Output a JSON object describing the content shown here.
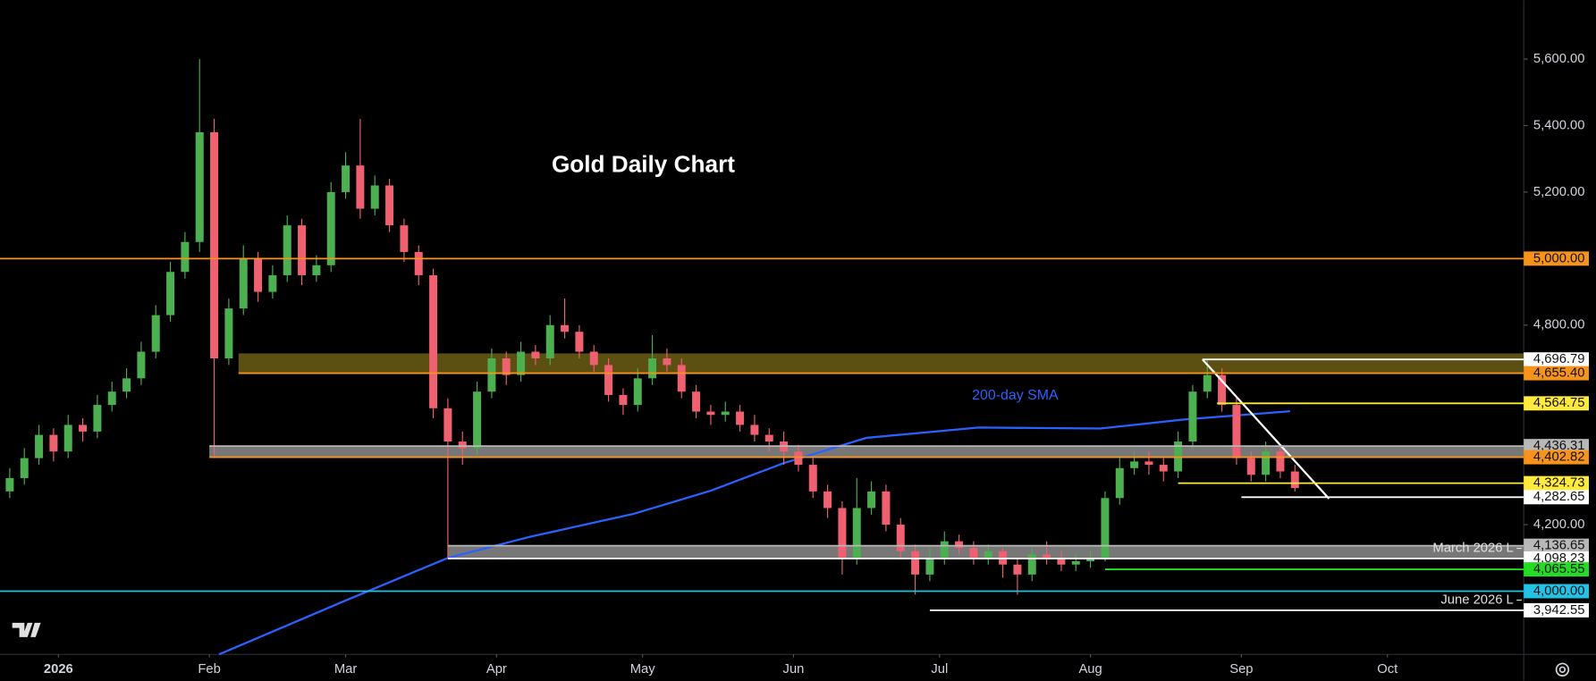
{
  "chart_data": {
    "type": "candlestick",
    "title": "Gold Daily Chart",
    "xlim": [
      -12,
      301
    ],
    "ylim": [
      3810,
      5777
    ],
    "xticks": [
      {
        "value": 0,
        "label": "2026"
      },
      {
        "value": 31,
        "label": "Feb"
      },
      {
        "value": 59,
        "label": "Mar"
      },
      {
        "value": 90,
        "label": "Apr"
      },
      {
        "value": 120,
        "label": "May"
      },
      {
        "value": 151,
        "label": "Jun"
      },
      {
        "value": 181,
        "label": "Jul"
      },
      {
        "value": 212,
        "label": "Aug"
      },
      {
        "value": 243,
        "label": "Sep"
      },
      {
        "value": 273,
        "label": "Oct"
      }
    ],
    "yticks": [
      {
        "value": 4200,
        "label": "4,200.00"
      },
      {
        "value": 4800,
        "label": "4,800.00"
      },
      {
        "value": 5200,
        "label": "5,200.00"
      },
      {
        "value": 5400,
        "label": "5,400.00"
      },
      {
        "value": 5600,
        "label": "5,600.00"
      }
    ],
    "candles": {
      "up_color": "#4caf50",
      "down_color": "#ef6070",
      "x": [
        -10,
        -7,
        -4,
        -1,
        2,
        5,
        8,
        11,
        14,
        17,
        20,
        23,
        26,
        29,
        32,
        35,
        38,
        41,
        44,
        47,
        50,
        53,
        56,
        59,
        62,
        65,
        68,
        71,
        74,
        77,
        80,
        83,
        86,
        89,
        92,
        95,
        98,
        101,
        104,
        107,
        110,
        113,
        116,
        119,
        122,
        125,
        128,
        131,
        134,
        137,
        140,
        143,
        146,
        149,
        152,
        155,
        158,
        161,
        164,
        167,
        170,
        173,
        176,
        179,
        182,
        185,
        188,
        191,
        194,
        197,
        200,
        203,
        206,
        209,
        212,
        215,
        218,
        221,
        224,
        227,
        230,
        233,
        236,
        239,
        242,
        245,
        248,
        251,
        254
      ],
      "ohlc": [
        [
          4300,
          4370,
          4280,
          4340
        ],
        [
          4340,
          4430,
          4320,
          4400
        ],
        [
          4400,
          4500,
          4380,
          4470
        ],
        [
          4470,
          4490,
          4390,
          4420
        ],
        [
          4420,
          4530,
          4400,
          4500
        ],
        [
          4500,
          4520,
          4450,
          4480
        ],
        [
          4480,
          4590,
          4460,
          4560
        ],
        [
          4560,
          4630,
          4540,
          4600
        ],
        [
          4600,
          4670,
          4580,
          4640
        ],
        [
          4640,
          4750,
          4620,
          4720
        ],
        [
          4720,
          4860,
          4700,
          4830
        ],
        [
          4830,
          4990,
          4810,
          4960
        ],
        [
          4960,
          5080,
          4940,
          5050
        ],
        [
          5050,
          5600,
          5020,
          5380
        ],
        [
          5380,
          5420,
          4400,
          4700
        ],
        [
          4700,
          4880,
          4680,
          4850
        ],
        [
          4850,
          5040,
          4830,
          5000
        ],
        [
          5000,
          5020,
          4870,
          4900
        ],
        [
          4900,
          4980,
          4880,
          4950
        ],
        [
          4950,
          5130,
          4930,
          5100
        ],
        [
          5100,
          5120,
          4920,
          4950
        ],
        [
          4950,
          5010,
          4930,
          4980
        ],
        [
          4980,
          5230,
          4960,
          5200
        ],
        [
          5200,
          5320,
          5180,
          5280
        ],
        [
          5280,
          5420,
          5120,
          5150
        ],
        [
          5150,
          5250,
          5130,
          5220
        ],
        [
          5220,
          5240,
          5080,
          5100
        ],
        [
          5100,
          5120,
          4990,
          5020
        ],
        [
          5020,
          5040,
          4920,
          4950
        ],
        [
          4950,
          4970,
          4520,
          4550
        ],
        [
          4550,
          4580,
          4100,
          4450
        ],
        [
          4450,
          4480,
          4380,
          4430
        ],
        [
          4430,
          4630,
          4410,
          4600
        ],
        [
          4600,
          4730,
          4580,
          4700
        ],
        [
          4700,
          4720,
          4620,
          4650
        ],
        [
          4650,
          4750,
          4630,
          4720
        ],
        [
          4720,
          4740,
          4680,
          4700
        ],
        [
          4700,
          4830,
          4680,
          4800
        ],
        [
          4800,
          4880,
          4760,
          4780
        ],
        [
          4780,
          4800,
          4700,
          4720
        ],
        [
          4720,
          4740,
          4660,
          4680
        ],
        [
          4680,
          4700,
          4570,
          4590
        ],
        [
          4590,
          4610,
          4530,
          4560
        ],
        [
          4560,
          4670,
          4540,
          4640
        ],
        [
          4640,
          4770,
          4620,
          4700
        ],
        [
          4700,
          4730,
          4660,
          4680
        ],
        [
          4680,
          4700,
          4580,
          4600
        ],
        [
          4600,
          4620,
          4520,
          4540
        ],
        [
          4540,
          4560,
          4500,
          4530
        ],
        [
          4530,
          4570,
          4510,
          4540
        ],
        [
          4540,
          4560,
          4480,
          4500
        ],
        [
          4500,
          4530,
          4450,
          4470
        ],
        [
          4470,
          4490,
          4420,
          4450
        ],
        [
          4450,
          4480,
          4380,
          4420
        ],
        [
          4420,
          4440,
          4360,
          4380
        ],
        [
          4380,
          4400,
          4280,
          4300
        ],
        [
          4300,
          4320,
          4220,
          4250
        ],
        [
          4250,
          4270,
          4050,
          4100
        ],
        [
          4100,
          4340,
          4080,
          4250
        ],
        [
          4250,
          4330,
          4230,
          4300
        ],
        [
          4300,
          4320,
          4180,
          4200
        ],
        [
          4200,
          4220,
          4100,
          4120
        ],
        [
          4120,
          4140,
          3990,
          4050
        ],
        [
          4050,
          4130,
          4030,
          4100
        ],
        [
          4100,
          4180,
          4080,
          4150
        ],
        [
          4150,
          4170,
          4110,
          4130
        ],
        [
          4130,
          4150,
          4080,
          4100
        ],
        [
          4100,
          4140,
          4080,
          4120
        ],
        [
          4120,
          4130,
          4040,
          4080
        ],
        [
          4080,
          4100,
          3990,
          4050
        ],
        [
          4050,
          4130,
          4030,
          4110
        ],
        [
          4110,
          4150,
          4080,
          4100
        ],
        [
          4100,
          4120,
          4060,
          4080
        ],
        [
          4080,
          4110,
          4060,
          4090
        ],
        [
          4090,
          4120,
          4070,
          4100
        ],
        [
          4100,
          4300,
          4090,
          4280
        ],
        [
          4280,
          4400,
          4260,
          4370
        ],
        [
          4370,
          4420,
          4350,
          4390
        ],
        [
          4390,
          4420,
          4350,
          4380
        ],
        [
          4380,
          4400,
          4330,
          4360
        ],
        [
          4360,
          4480,
          4340,
          4450
        ],
        [
          4450,
          4620,
          4430,
          4600
        ],
        [
          4600,
          4697,
          4580,
          4650
        ],
        [
          4650,
          4670,
          4540,
          4560
        ],
        [
          4560,
          4580,
          4380,
          4400
        ],
        [
          4400,
          4420,
          4330,
          4350
        ],
        [
          4350,
          4450,
          4330,
          4420
        ],
        [
          4420,
          4440,
          4340,
          4360
        ],
        [
          4360,
          4380,
          4300,
          4310
        ]
      ]
    },
    "sma": {
      "name": "200-day SMA",
      "color": "#2962ff",
      "x": [
        33,
        59,
        80,
        97,
        118,
        134,
        149,
        166,
        189,
        214,
        231,
        253
      ],
      "values": [
        3810,
        3972,
        4100,
        4164,
        4232,
        4302,
        4385,
        4461,
        4492,
        4489,
        4516,
        4541
      ]
    },
    "trendline": {
      "color": "#ffffff",
      "x": [
        235,
        261
      ],
      "values": [
        4697,
        4278
      ]
    },
    "zones": [
      {
        "low": 4655.4,
        "high": 4715,
        "start": 37,
        "color": "#6b5d14"
      },
      {
        "low": 4402.82,
        "high": 4436.31,
        "start": 31,
        "color": "#8c8c8c"
      },
      {
        "low": 4098.23,
        "high": 4136.65,
        "start": 80,
        "color": "#8c8c8c"
      }
    ],
    "levels": [
      {
        "value": 5000,
        "label": "5,000.00",
        "color": "#f7931a",
        "start": -12
      },
      {
        "value": 4696.79,
        "label": "4,696.79",
        "color": "#ffffff",
        "start": 235
      },
      {
        "value": 4655.4,
        "label": "4,655.40",
        "color": "#f7931a",
        "start": 37
      },
      {
        "value": 4564.75,
        "label": "4,564.75",
        "color": "#ffeb3b",
        "start": 238
      },
      {
        "value": 4436.31,
        "label": "4,436.31",
        "color": "#b8b8b8",
        "start": 31
      },
      {
        "value": 4402.82,
        "label": "4,402.82",
        "color": "#f7931a",
        "start": 31
      },
      {
        "value": 4324.73,
        "label": "4,324.73",
        "color": "#ffeb3b",
        "start": 230
      },
      {
        "value": 4282.65,
        "label": "4,282.65",
        "color": "#ffffff",
        "start": 243
      },
      {
        "value": 4136.65,
        "label": "4,136.65",
        "color": "#b8b8b8",
        "start": 80
      },
      {
        "value": 4098.23,
        "label": "4,098.23",
        "color": "#ffffff",
        "start": 80,
        "text": "March 2026 L"
      },
      {
        "value": 4065.55,
        "label": "4,065.55",
        "color": "#22dd22",
        "start": 215
      },
      {
        "value": 4000,
        "label": "4,000.00",
        "color": "#22c3e6",
        "start": -12
      },
      {
        "value": 3942.55,
        "label": "3,942.55",
        "color": "#ffffff",
        "start": 179,
        "text": "June 2026 L"
      }
    ]
  }
}
